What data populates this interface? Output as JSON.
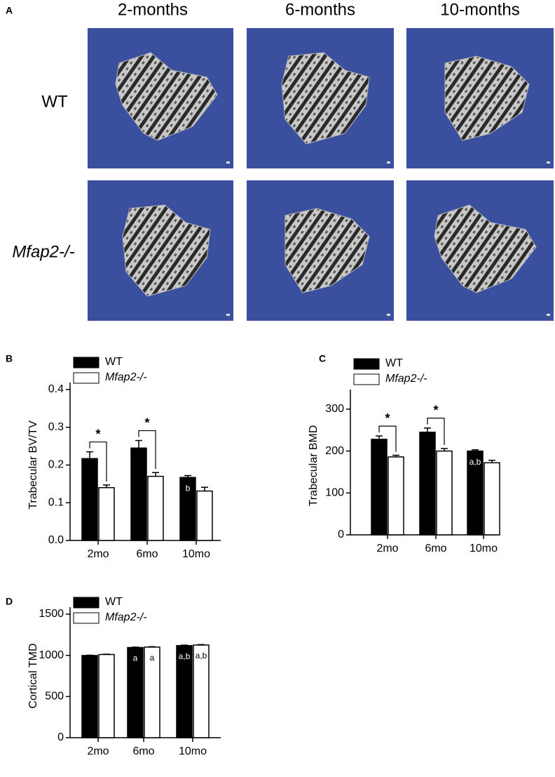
{
  "panel_a": {
    "label": "A",
    "columns": [
      "2-months",
      "6-months",
      "10-months"
    ],
    "rows": [
      "WT",
      "Mfap2-/-"
    ]
  },
  "chart_data": [
    {
      "type": "bar",
      "panel": "B",
      "y_label": "Trabecular BV/TV",
      "categories": [
        "2mo",
        "6mo",
        "10mo"
      ],
      "series": [
        {
          "name": "WT",
          "color": "#000000",
          "values": [
            0.217,
            0.245,
            0.167
          ],
          "errors": [
            0.018,
            0.02,
            0.005
          ],
          "bar_labels": [
            null,
            null,
            "b"
          ]
        },
        {
          "name": "Mfap2-/-",
          "color": "#ffffff",
          "values": [
            0.14,
            0.17,
            0.131
          ],
          "errors": [
            0.007,
            0.01,
            0.01
          ],
          "bar_labels": [
            null,
            null,
            null
          ]
        }
      ],
      "significance": [
        "*",
        "*",
        null
      ],
      "ylim": [
        0,
        0.4
      ],
      "yticks": [
        0.0,
        0.1,
        0.2,
        0.3,
        0.4
      ]
    },
    {
      "type": "bar",
      "panel": "C",
      "y_label": "Trabecular BMD",
      "categories": [
        "2mo",
        "6mo",
        "10mo"
      ],
      "series": [
        {
          "name": "WT",
          "color": "#000000",
          "values": [
            228,
            245,
            200
          ],
          "errors": [
            8,
            10,
            3
          ],
          "bar_labels": [
            null,
            null,
            "a,b"
          ]
        },
        {
          "name": "Mfap2-/-",
          "color": "#ffffff",
          "values": [
            186,
            200,
            172
          ],
          "errors": [
            4,
            6,
            6
          ],
          "bar_labels": [
            null,
            null,
            null
          ]
        }
      ],
      "significance": [
        "*",
        "*",
        null
      ],
      "ylim": [
        0,
        330
      ],
      "yticks": [
        0,
        100,
        200,
        300
      ]
    },
    {
      "type": "bar",
      "panel": "D",
      "y_label": "Cortical TMD",
      "categories": [
        "2mo",
        "6mo",
        "10mo"
      ],
      "series": [
        {
          "name": "WT",
          "color": "#000000",
          "values": [
            998,
            1095,
            1118
          ],
          "errors": [
            4,
            5,
            6
          ],
          "bar_labels": [
            null,
            "a",
            "a,b"
          ]
        },
        {
          "name": "Mfap2-/-",
          "color": "#ffffff",
          "values": [
            1010,
            1100,
            1125
          ],
          "errors": [
            4,
            5,
            6
          ],
          "bar_labels": [
            null,
            "a",
            "a,b"
          ]
        }
      ],
      "significance": [
        null,
        null,
        null
      ],
      "ylim": [
        0,
        1500
      ],
      "yticks": [
        0,
        500,
        1000,
        1500
      ]
    }
  ]
}
